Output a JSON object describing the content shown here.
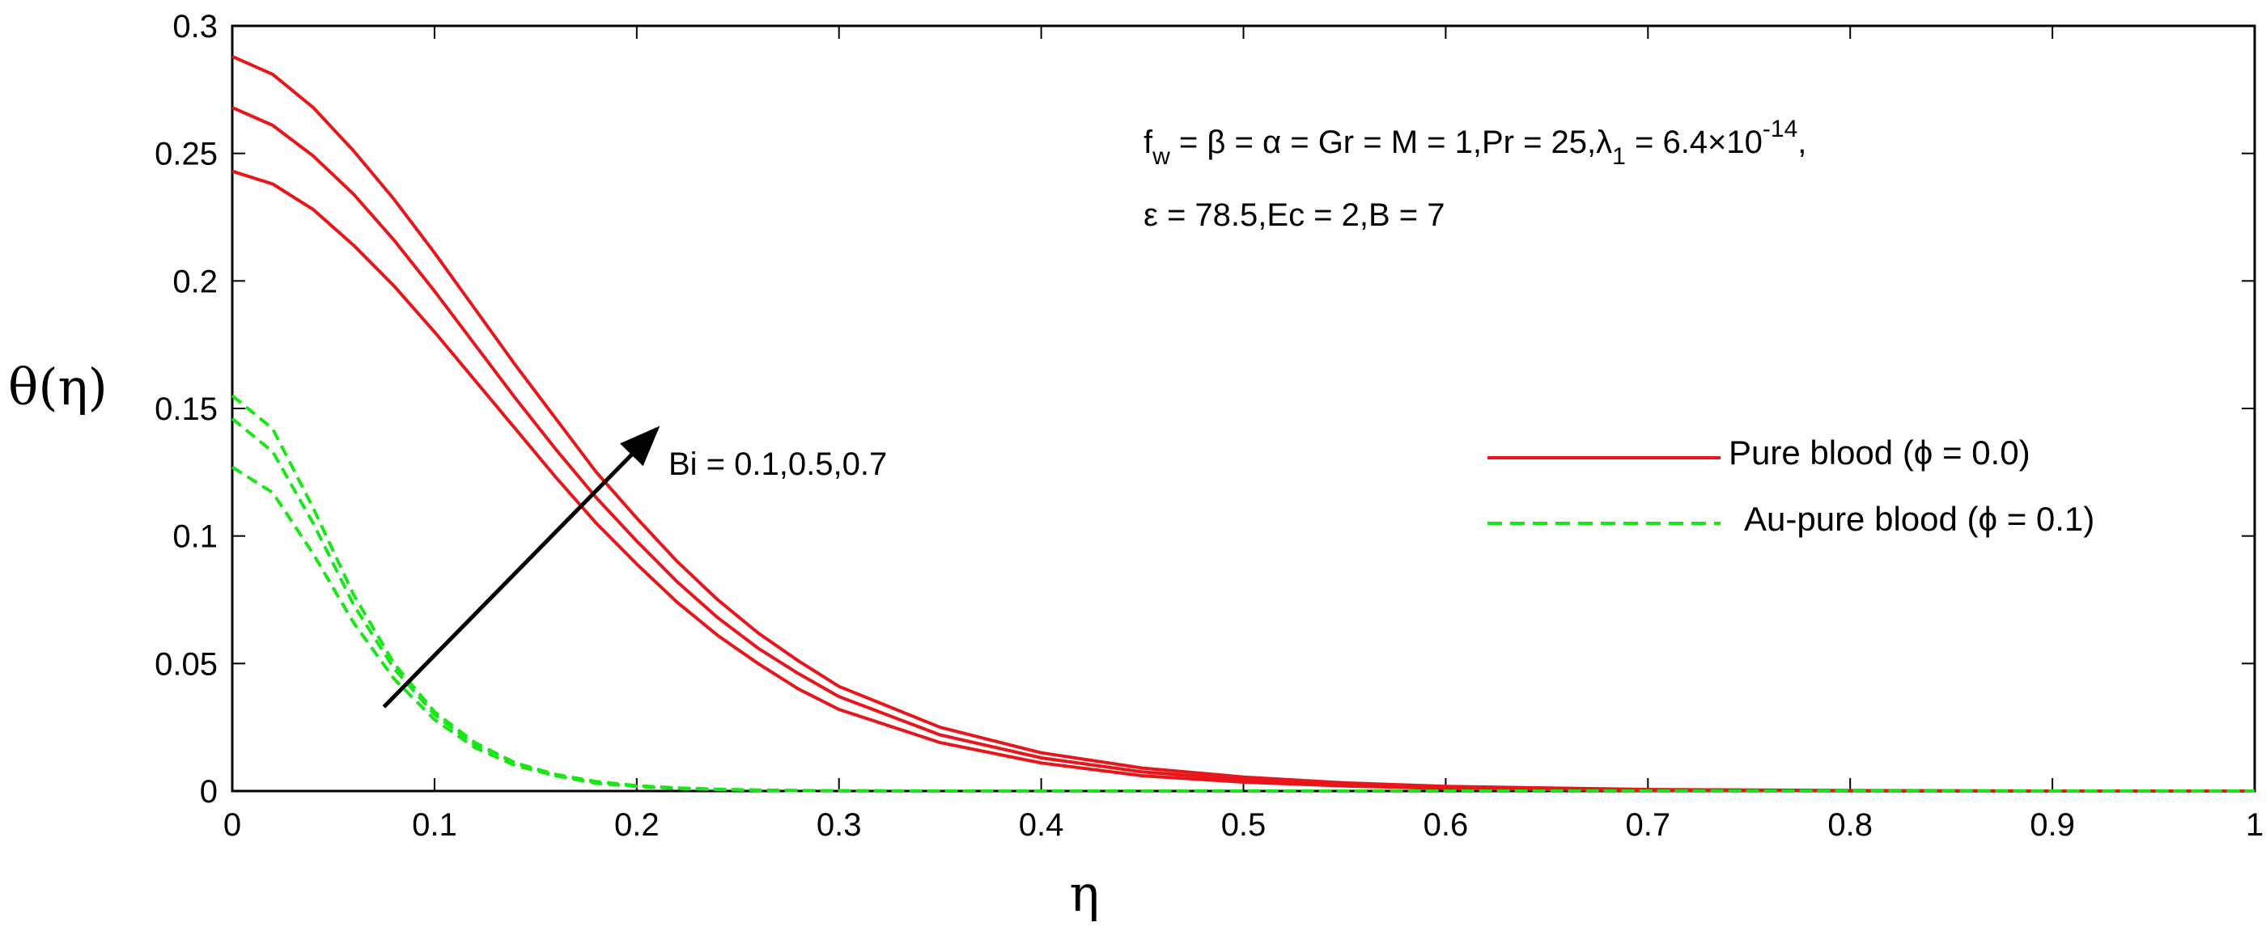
{
  "chart_data": {
    "type": "line",
    "xlabel": "η",
    "ylabel": "θ(η)",
    "xlim": [
      0,
      1
    ],
    "ylim": [
      0,
      0.3
    ],
    "x_ticks": [
      0,
      0.1,
      0.2,
      0.3,
      0.4,
      0.5,
      0.6,
      0.7,
      0.8,
      0.9,
      1
    ],
    "x_tick_labels": [
      "0",
      "0.1",
      "0.2",
      "0.3",
      "0.4",
      "0.5",
      "0.6",
      "0.7",
      "0.8",
      "0.9",
      "1"
    ],
    "y_ticks": [
      0,
      0.05,
      0.1,
      0.15,
      0.2,
      0.25,
      0.3
    ],
    "y_tick_labels": [
      "0",
      "0.05",
      "0.1",
      "0.15",
      "0.2",
      "0.25",
      "0.3"
    ],
    "x": [
      0,
      0.02,
      0.04,
      0.06,
      0.08,
      0.1,
      0.12,
      0.14,
      0.16,
      0.18,
      0.2,
      0.22,
      0.24,
      0.26,
      0.28,
      0.3,
      0.35,
      0.4,
      0.45,
      0.5,
      0.55,
      0.6,
      0.7,
      0.8,
      0.9,
      1.0
    ],
    "series": [
      {
        "name": "Pure blood Bi = 0.1",
        "group": "pure",
        "color": "#e8161b",
        "dash": "solid",
        "values": [
          0.243,
          0.238,
          0.228,
          0.214,
          0.198,
          0.18,
          0.161,
          0.142,
          0.123,
          0.105,
          0.089,
          0.074,
          0.061,
          0.05,
          0.04,
          0.032,
          0.019,
          0.011,
          0.006,
          0.0035,
          0.002,
          0.001,
          0.0003,
          0.0001,
          0.0,
          0.0
        ]
      },
      {
        "name": "Pure blood Bi = 0.5",
        "group": "pure",
        "color": "#e8161b",
        "dash": "solid",
        "values": [
          0.268,
          0.261,
          0.249,
          0.234,
          0.216,
          0.196,
          0.175,
          0.154,
          0.134,
          0.115,
          0.098,
          0.082,
          0.068,
          0.056,
          0.046,
          0.037,
          0.022,
          0.013,
          0.0075,
          0.0045,
          0.0027,
          0.0015,
          0.0005,
          0.0001,
          0.0,
          0.0
        ]
      },
      {
        "name": "Pure blood Bi = 0.7",
        "group": "pure",
        "color": "#e8161b",
        "dash": "solid",
        "values": [
          0.288,
          0.281,
          0.268,
          0.251,
          0.232,
          0.211,
          0.189,
          0.167,
          0.146,
          0.125,
          0.107,
          0.09,
          0.075,
          0.062,
          0.051,
          0.041,
          0.025,
          0.015,
          0.009,
          0.0055,
          0.0032,
          0.0018,
          0.0006,
          0.0002,
          0.0,
          0.0
        ]
      },
      {
        "name": "Au-pure blood Bi = 0.1",
        "group": "au",
        "color": "#19e619",
        "dash": "dashed",
        "values": [
          0.127,
          0.117,
          0.093,
          0.066,
          0.044,
          0.028,
          0.017,
          0.01,
          0.006,
          0.003,
          0.0018,
          0.001,
          0.0006,
          0.0003,
          0.0002,
          0.0001,
          0.0,
          0.0,
          0.0,
          0.0,
          0.0,
          0.0,
          0.0,
          0.0,
          0.0,
          0.0
        ]
      },
      {
        "name": "Au-pure blood Bi = 0.5",
        "group": "au",
        "color": "#19e619",
        "dash": "dashed",
        "values": [
          0.146,
          0.133,
          0.105,
          0.073,
          0.048,
          0.03,
          0.018,
          0.011,
          0.006,
          0.0035,
          0.002,
          0.0011,
          0.0006,
          0.0003,
          0.0002,
          0.0001,
          0.0,
          0.0,
          0.0,
          0.0,
          0.0,
          0.0,
          0.0,
          0.0,
          0.0,
          0.0
        ]
      },
      {
        "name": "Au-pure blood Bi = 0.7",
        "group": "au",
        "color": "#19e619",
        "dash": "dashed",
        "values": [
          0.155,
          0.142,
          0.111,
          0.077,
          0.05,
          0.031,
          0.019,
          0.011,
          0.0065,
          0.0037,
          0.0021,
          0.0012,
          0.0007,
          0.0004,
          0.0002,
          0.0001,
          0.0,
          0.0,
          0.0,
          0.0,
          0.0,
          0.0,
          0.0,
          0.0,
          0.0,
          0.0
        ]
      }
    ],
    "legend": {
      "position": "right",
      "entries": [
        {
          "label": "Pure blood (ϕ = 0.0)",
          "color": "#e8161b",
          "dash": "solid"
        },
        {
          "label": "Au-pure blood (ϕ = 0.1)",
          "color": "#19e619",
          "dash": "dashed"
        }
      ]
    },
    "arrow": {
      "from": [
        0.075,
        0.033
      ],
      "to": [
        0.21,
        0.142
      ],
      "color": "#000000"
    },
    "annotations": {
      "bi": "Bi = 0.1,0.5,0.7",
      "line1": {
        "f": "f",
        "f_sub": "w",
        "a": " = β = α = Gr = M = 1,Pr = 25,λ",
        "lambda_sub": "1",
        "b": " = 6.4×10",
        "exp": "-14",
        "c": ","
      },
      "line2": "ε = 78.5,Ec = 2,B = 7"
    }
  }
}
